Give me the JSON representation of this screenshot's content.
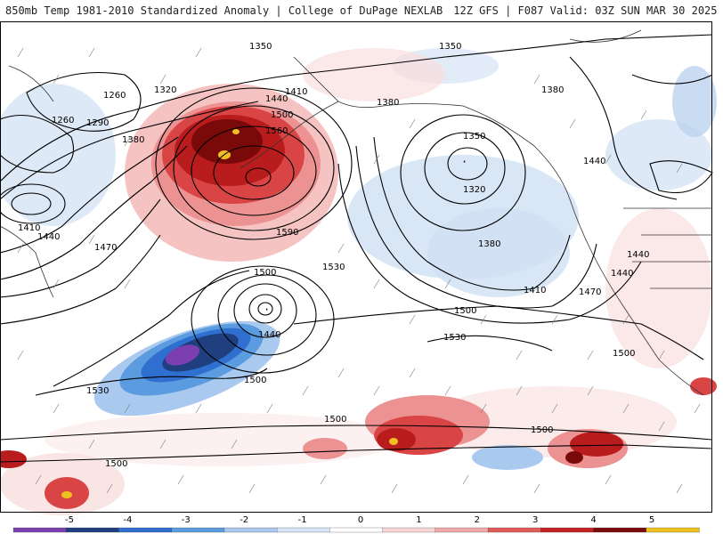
{
  "header": {
    "title": "850mb Temp 1981-2010 Standardized Anomaly | College of DuPage NEXLAB",
    "run": "12Z GFS | F087 Valid: 03Z SUN MAR 30 2025"
  },
  "map": {
    "contour_labels": [
      {
        "text": "1350"
      },
      {
        "text": "1350"
      },
      {
        "text": "1320"
      },
      {
        "text": "1260"
      },
      {
        "text": "1260"
      },
      {
        "text": "1290"
      },
      {
        "text": "1380"
      },
      {
        "text": "1410"
      },
      {
        "text": "1440"
      },
      {
        "text": "1500"
      },
      {
        "text": "1560"
      },
      {
        "text": "1380"
      },
      {
        "text": "1380"
      },
      {
        "text": "1350"
      },
      {
        "text": "1320"
      },
      {
        "text": "1440"
      },
      {
        "text": "1410"
      },
      {
        "text": "1440"
      },
      {
        "text": "1470"
      },
      {
        "text": "1590"
      },
      {
        "text": "1380"
      },
      {
        "text": "1410"
      },
      {
        "text": "1470"
      },
      {
        "text": "1440"
      },
      {
        "text": "1440"
      },
      {
        "text": "1500"
      },
      {
        "text": "1530"
      },
      {
        "text": "1500"
      },
      {
        "text": "1440"
      },
      {
        "text": "1530"
      },
      {
        "text": "1500"
      },
      {
        "text": "1500"
      },
      {
        "text": "1530"
      },
      {
        "text": "1500"
      },
      {
        "text": "1500"
      },
      {
        "text": "1500"
      }
    ]
  },
  "colorbar": {
    "ticks": [
      "-5",
      "-4",
      "-3",
      "-2",
      "-1",
      "0",
      "1",
      "2",
      "3",
      "4",
      "5"
    ],
    "colors": [
      "#7b3fb0",
      "#1f3f7f",
      "#2e6fcf",
      "#5b9be0",
      "#a9c9ee",
      "#d6e6f6",
      "#ffffff",
      "#f8d6d6",
      "#f0a8a8",
      "#e05a5a",
      "#c42020",
      "#7a0a0a",
      "#f0c020"
    ]
  }
}
